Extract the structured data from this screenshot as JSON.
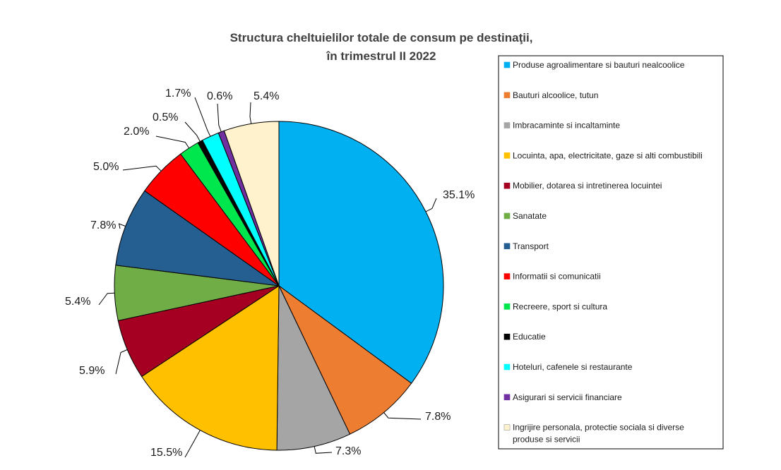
{
  "chart_data": {
    "type": "pie",
    "title": "Structura cheltuielilor totale de consum pe destinaţii,",
    "subtitle": "în trimestrul II 2022",
    "legend_placement": "right",
    "unit": "%",
    "slices": [
      {
        "name": "Produse agroalimentare si bauturi nealcoolice",
        "value": 35.1,
        "label": "35.1%",
        "color": "#00B0F0"
      },
      {
        "name": "Bauturi alcoolice, tutun",
        "value": 7.8,
        "label": "7.8%",
        "color": "#ED7D31"
      },
      {
        "name": "Imbracaminte si incaltaminte",
        "value": 7.3,
        "label": "7.3%",
        "color": "#A5A5A5"
      },
      {
        "name": "Locuinta, apa, electricitate, gaze si alti combustibili",
        "value": 15.5,
        "label": "15.5%",
        "color": "#FFC000"
      },
      {
        "name": "Mobilier, dotarea si intretinerea locuintei",
        "value": 5.9,
        "label": "5.9%",
        "color": "#A50021"
      },
      {
        "name": "Sanatate",
        "value": 5.4,
        "label": "5.4%",
        "color": "#70AD47"
      },
      {
        "name": "Transport",
        "value": 7.8,
        "label": "7.8%",
        "color": "#255E91"
      },
      {
        "name": "Informatii si comunicatii",
        "value": 5.0,
        "label": "5.0%",
        "color": "#FF0000"
      },
      {
        "name": "Recreere, sport si cultura",
        "value": 2.0,
        "label": "2.0%",
        "color": "#00E64D"
      },
      {
        "name": "Educatie",
        "value": 0.5,
        "label": "0.5%",
        "color": "#000000"
      },
      {
        "name": "Hoteluri, cafenele si restaurante",
        "value": 1.7,
        "label": "1.7%",
        "color": "#00FFFF"
      },
      {
        "name": "Asigurari si servicii financiare",
        "value": 0.6,
        "label": "0.6%",
        "color": "#7030A0"
      },
      {
        "name": "Ingrijire personala, protectie sociala si diverse produse si servicii",
        "value": 5.4,
        "label": "5.4%",
        "color": "#FFF2CC"
      }
    ]
  }
}
